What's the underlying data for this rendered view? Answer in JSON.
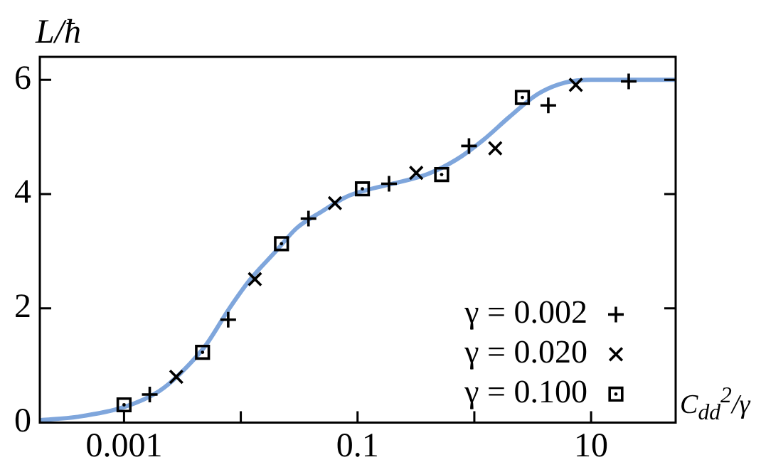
{
  "chart_data": {
    "type": "scatter",
    "xlabel": "C$_{dd}$$^{2}$/γ",
    "ylabel": "L/ħ",
    "log": "x",
    "xlim": [
      0.00019,
      53
    ],
    "ylim": [
      0,
      6.4
    ],
    "xticks": [
      0.001,
      {
        "value": 0.01,
        "label": null
      },
      0.1,
      {
        "value": 1,
        "label": null
      },
      10
    ],
    "yticks": [
      0,
      2,
      4,
      6
    ],
    "grid": false,
    "legend": "bottom right",
    "series": [
      {
        "type": "line",
        "color": "#7fa6dc",
        "marker": "none",
        "x": [
          0.00019,
          0.0004,
          0.001,
          0.002,
          0.003,
          0.005,
          0.008,
          0.012,
          0.02,
          0.03,
          0.05,
          0.08,
          0.12,
          0.2,
          0.4,
          0.7,
          1.2,
          2,
          3.5,
          6,
          10,
          53
        ],
        "values": [
          0.04,
          0.1,
          0.27,
          0.55,
          0.85,
          1.35,
          2.0,
          2.5,
          3.0,
          3.4,
          3.7,
          3.95,
          4.07,
          4.18,
          4.35,
          4.6,
          4.95,
          5.35,
          5.75,
          5.95,
          6.0,
          6.0
        ]
      },
      {
        "name": "γ = 0.002",
        "color": "#000000",
        "marker": "cross",
        "x": [
          0.00166,
          0.0078,
          0.038,
          0.186,
          0.9,
          4.3,
          21
        ],
        "values": [
          0.49,
          1.8,
          3.57,
          4.18,
          4.84,
          5.55,
          5.97
        ]
      },
      {
        "name": "γ = 0.020",
        "color": "#000000",
        "marker": "x",
        "x": [
          0.0028,
          0.0132,
          0.064,
          0.318,
          1.51,
          7.4
        ],
        "values": [
          0.8,
          2.51,
          3.84,
          4.37,
          4.8,
          5.91
        ]
      },
      {
        "name": "γ = 0.100",
        "color": "#000000",
        "marker": "square",
        "x": [
          0.001,
          0.0047,
          0.0223,
          0.11,
          0.525,
          2.58
        ],
        "values": [
          0.31,
          1.23,
          3.13,
          4.09,
          4.34,
          5.69
        ]
      }
    ]
  }
}
